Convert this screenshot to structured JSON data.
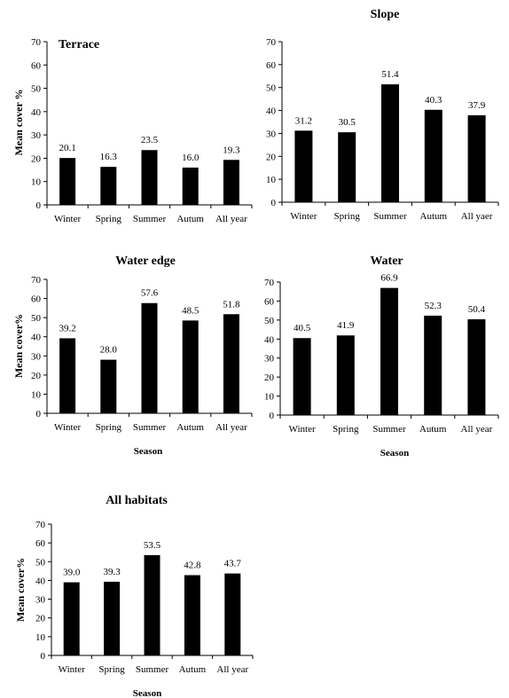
{
  "chart_data": [
    {
      "type": "bar",
      "title": "Terrace",
      "ylabel": "Mean cover %",
      "xlabel": "",
      "categories": [
        "Winter",
        "Spring",
        "Summer",
        "Autum",
        "All year"
      ],
      "values": [
        20.1,
        16.3,
        23.5,
        16.0,
        19.3
      ],
      "value_labels": [
        "20.1",
        "16.3",
        "23.5",
        "16.0",
        "19.3"
      ],
      "yticks": [
        "0",
        "10",
        "20",
        "30",
        "40",
        "50",
        "60",
        "70"
      ],
      "ylim": [
        0,
        70
      ],
      "grid": false,
      "bar_color": "#000000"
    },
    {
      "type": "bar",
      "title": "Slope",
      "ylabel": "",
      "xlabel": "",
      "categories": [
        "Winter",
        "Spring",
        "Summer",
        "Autum",
        "All yaer"
      ],
      "values": [
        31.2,
        30.5,
        51.4,
        40.3,
        37.9
      ],
      "value_labels": [
        "31.2",
        "30.5",
        "51.4",
        "40.3",
        "37.9"
      ],
      "yticks": [
        "0",
        "10",
        "20",
        "30",
        "40",
        "50",
        "60",
        "70"
      ],
      "ylim": [
        0,
        70
      ],
      "grid": false,
      "bar_color": "#000000"
    },
    {
      "type": "bar",
      "title": "Water edge",
      "ylabel": "Mean cover%",
      "xlabel": "Season",
      "categories": [
        "Winter",
        "Spring",
        "Summer",
        "Autum",
        "All year"
      ],
      "values": [
        39.2,
        28.0,
        57.6,
        48.5,
        51.8
      ],
      "value_labels": [
        "39.2",
        "28.0",
        "57.6",
        "48.5",
        "51.8"
      ],
      "yticks": [
        "0",
        "10",
        "20",
        "30",
        "40",
        "50",
        "60",
        "70"
      ],
      "ylim": [
        0,
        70
      ],
      "grid": false,
      "bar_color": "#000000"
    },
    {
      "type": "bar",
      "title": "Water",
      "ylabel": "",
      "xlabel": "Season",
      "categories": [
        "Winter",
        "Spring",
        "Summer",
        "Autum",
        "All year"
      ],
      "values": [
        40.5,
        41.9,
        66.9,
        52.3,
        50.4
      ],
      "value_labels": [
        "40.5",
        "41.9",
        "66.9",
        "52.3",
        "50.4"
      ],
      "yticks": [
        "0",
        "10",
        "20",
        "30",
        "40",
        "50",
        "60",
        "70"
      ],
      "ylim": [
        0,
        70
      ],
      "grid": false,
      "bar_color": "#000000"
    },
    {
      "type": "bar",
      "title": "All habitats",
      "ylabel": "Mean cover%",
      "xlabel": "Season",
      "categories": [
        "Winter",
        "Spring",
        "Summer",
        "Autum",
        "All year"
      ],
      "values": [
        39.0,
        39.3,
        53.5,
        42.8,
        43.7
      ],
      "value_labels": [
        "39.0",
        "39.3",
        "53.5",
        "42.8",
        "43.7"
      ],
      "yticks": [
        "0",
        "10",
        "20",
        "30",
        "40",
        "50",
        "60",
        "70"
      ],
      "ylim": [
        0,
        70
      ],
      "grid": false,
      "bar_color": "#000000"
    }
  ]
}
